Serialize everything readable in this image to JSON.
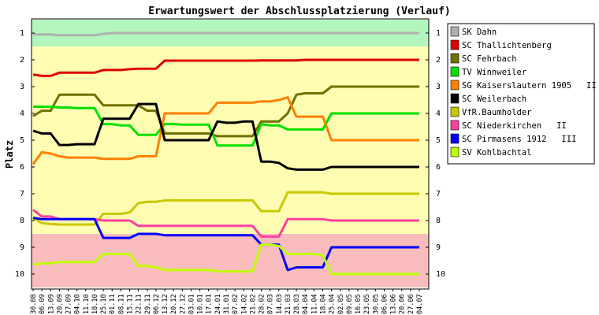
{
  "chart_data": {
    "type": "line",
    "title": "Erwartungswert der Abschlussplatzierung (Verlauf)",
    "ylabel": "Platz",
    "xlabel": "",
    "ylim": [
      1,
      10
    ],
    "y_inverted": true,
    "y_ticks": [
      "1",
      "2",
      "3",
      "4",
      "5",
      "6",
      "7",
      "8",
      "9",
      "10"
    ],
    "x": [
      "30.08",
      "06.09",
      "13.09",
      "20.09",
      "27.09",
      "04.10",
      "11.10",
      "18.10",
      "25.10",
      "01.11",
      "08.11",
      "15.11",
      "22.11",
      "29.11",
      "06.12",
      "13.12",
      "20.12",
      "27.12",
      "03.01",
      "10.01",
      "17.01",
      "24.01",
      "31.01",
      "07.02",
      "14.02",
      "21.02",
      "28.02",
      "07.03",
      "14.03",
      "21.03",
      "28.03",
      "04.04",
      "11.04",
      "18.04",
      "25.04",
      "02.05",
      "09.05",
      "16.05",
      "23.05",
      "30.05",
      "06.06",
      "13.06",
      "20.06",
      "27.06",
      "04.07"
    ],
    "grid": false,
    "legend_position": "right",
    "zones": [
      {
        "from": 0.5,
        "to": 1.5,
        "color": "#b3f5be"
      },
      {
        "from": 1.5,
        "to": 8.5,
        "color": "#fffdb2"
      },
      {
        "from": 8.5,
        "to": 10.5,
        "color": "#f9bcbc"
      }
    ],
    "series": [
      {
        "name": "SK Dahn",
        "color": "#b0b0b0",
        "values": [
          1.05,
          1.05,
          1.05,
          1.08,
          1.08,
          1.08,
          1.08,
          1.08,
          1.03,
          1.0,
          1.0,
          1.0,
          1.0,
          1.0,
          1.0,
          1.0,
          1.0,
          1.0,
          1.0,
          1.0,
          1.0,
          1.0,
          1.0,
          1.0,
          1.0,
          1.0,
          1.0,
          1.0,
          1.0,
          1.0,
          1.0,
          1.0,
          1.0,
          1.0,
          1.0,
          1.0,
          1.0,
          1.0,
          1.0,
          1.0,
          1.0,
          1.0,
          1.0,
          1.0,
          1.0
        ]
      },
      {
        "name": "SC Thallichtenberg",
        "color": "#e00000",
        "values": [
          2.55,
          2.6,
          2.6,
          2.48,
          2.48,
          2.48,
          2.48,
          2.48,
          2.38,
          2.38,
          2.38,
          2.35,
          2.33,
          2.33,
          2.33,
          2.03,
          2.03,
          2.03,
          2.03,
          2.03,
          2.03,
          2.03,
          2.03,
          2.03,
          2.03,
          2.03,
          2.02,
          2.02,
          2.02,
          2.02,
          2.02,
          2.0,
          2.0,
          2.0,
          2.0,
          2.0,
          2.0,
          2.0,
          2.0,
          2.0,
          2.0,
          2.0,
          2.0,
          2.0,
          2.0
        ]
      },
      {
        "name": "SC Fehrbach",
        "color": "#707000",
        "values": [
          4.1,
          3.9,
          3.9,
          3.3,
          3.3,
          3.3,
          3.3,
          3.3,
          3.7,
          3.7,
          3.7,
          3.7,
          3.7,
          3.9,
          3.9,
          4.75,
          4.75,
          4.75,
          4.75,
          4.75,
          4.75,
          4.85,
          4.85,
          4.85,
          4.85,
          4.85,
          4.3,
          4.3,
          4.3,
          4.0,
          3.3,
          3.25,
          3.25,
          3.25,
          3.0,
          3.0,
          3.0,
          3.0,
          3.0,
          3.0,
          3.0,
          3.0,
          3.0,
          3.0,
          3.0
        ]
      },
      {
        "name": "TV Winnweiler",
        "color": "#00e000",
        "values": [
          3.75,
          3.75,
          3.75,
          3.78,
          3.78,
          3.8,
          3.8,
          3.8,
          4.4,
          4.4,
          4.45,
          4.45,
          4.8,
          4.8,
          4.8,
          4.4,
          4.4,
          4.42,
          4.42,
          4.42,
          4.42,
          5.2,
          5.2,
          5.2,
          5.2,
          5.2,
          4.4,
          4.45,
          4.45,
          4.6,
          4.6,
          4.6,
          4.6,
          4.6,
          4.0,
          4.0,
          4.0,
          4.0,
          4.0,
          4.0,
          4.0,
          4.0,
          4.0,
          4.0,
          4.0
        ]
      },
      {
        "name": "SG Kaiserslautern 1905   II",
        "color": "#ff8000",
        "values": [
          5.9,
          5.45,
          5.5,
          5.6,
          5.65,
          5.65,
          5.65,
          5.65,
          5.7,
          5.7,
          5.7,
          5.7,
          5.6,
          5.6,
          5.6,
          4.0,
          4.0,
          4.0,
          4.0,
          4.0,
          4.0,
          3.6,
          3.6,
          3.6,
          3.6,
          3.6,
          3.55,
          3.55,
          3.5,
          3.4,
          4.12,
          4.12,
          4.12,
          4.12,
          5.0,
          5.0,
          5.0,
          5.0,
          5.0,
          5.0,
          5.0,
          5.0,
          5.0,
          5.0,
          5.0
        ]
      },
      {
        "name": "SC Weilerbach",
        "color": "#000000",
        "values": [
          4.65,
          4.75,
          4.75,
          5.18,
          5.18,
          5.15,
          5.15,
          5.15,
          4.2,
          4.2,
          4.2,
          4.2,
          3.65,
          3.65,
          3.65,
          5.0,
          5.0,
          5.0,
          5.0,
          5.0,
          5.0,
          4.3,
          4.35,
          4.35,
          4.3,
          4.3,
          5.8,
          5.8,
          5.85,
          6.05,
          6.1,
          6.1,
          6.1,
          6.1,
          6.0,
          6.0,
          6.0,
          6.0,
          6.0,
          6.0,
          6.0,
          6.0,
          6.0,
          6.0,
          6.0
        ]
      },
      {
        "name": "VfR.Baumholder",
        "color": "#c8c800",
        "values": [
          7.9,
          8.1,
          8.13,
          8.15,
          8.15,
          8.15,
          8.15,
          8.15,
          7.75,
          7.75,
          7.75,
          7.7,
          7.35,
          7.3,
          7.3,
          7.25,
          7.25,
          7.25,
          7.25,
          7.25,
          7.25,
          7.25,
          7.25,
          7.25,
          7.25,
          7.25,
          7.65,
          7.65,
          7.65,
          6.95,
          6.95,
          6.95,
          6.95,
          6.95,
          7.0,
          7.0,
          7.0,
          7.0,
          7.0,
          7.0,
          7.0,
          7.0,
          7.0,
          7.0,
          7.0
        ]
      },
      {
        "name": "SC Niederkirchen   II",
        "color": "#ff40a0",
        "values": [
          7.6,
          7.85,
          7.85,
          7.95,
          7.95,
          7.95,
          7.95,
          7.95,
          8.0,
          8.0,
          8.0,
          8.0,
          8.2,
          8.2,
          8.2,
          8.2,
          8.2,
          8.2,
          8.2,
          8.2,
          8.2,
          8.2,
          8.2,
          8.2,
          8.2,
          8.2,
          8.6,
          8.6,
          8.6,
          7.95,
          7.95,
          7.95,
          7.95,
          7.95,
          8.0,
          8.0,
          8.0,
          8.0,
          8.0,
          8.0,
          8.0,
          8.0,
          8.0,
          8.0,
          8.0
        ]
      },
      {
        "name": "SC Pirmasens 1912   III",
        "color": "#0000ff",
        "values": [
          7.9,
          7.95,
          7.95,
          7.95,
          7.95,
          7.95,
          7.95,
          7.95,
          8.65,
          8.65,
          8.65,
          8.65,
          8.5,
          8.5,
          8.5,
          8.55,
          8.55,
          8.55,
          8.55,
          8.55,
          8.55,
          8.55,
          8.55,
          8.55,
          8.55,
          8.55,
          8.9,
          8.9,
          8.9,
          9.85,
          9.75,
          9.75,
          9.75,
          9.75,
          9.0,
          9.0,
          9.0,
          9.0,
          9.0,
          9.0,
          9.0,
          9.0,
          9.0,
          9.0,
          9.0
        ]
      },
      {
        "name": "SV Kohlbachtal",
        "color": "#bfff00",
        "values": [
          9.65,
          9.6,
          9.6,
          9.55,
          9.55,
          9.55,
          9.55,
          9.55,
          9.25,
          9.25,
          9.25,
          9.25,
          9.7,
          9.7,
          9.75,
          9.85,
          9.85,
          9.85,
          9.85,
          9.85,
          9.85,
          9.9,
          9.9,
          9.9,
          9.9,
          9.9,
          8.9,
          8.9,
          8.95,
          9.25,
          9.25,
          9.25,
          9.25,
          9.3,
          10.0,
          10.0,
          10.0,
          10.0,
          10.0,
          10.0,
          10.0,
          10.0,
          10.0,
          10.0,
          10.0
        ]
      }
    ]
  }
}
